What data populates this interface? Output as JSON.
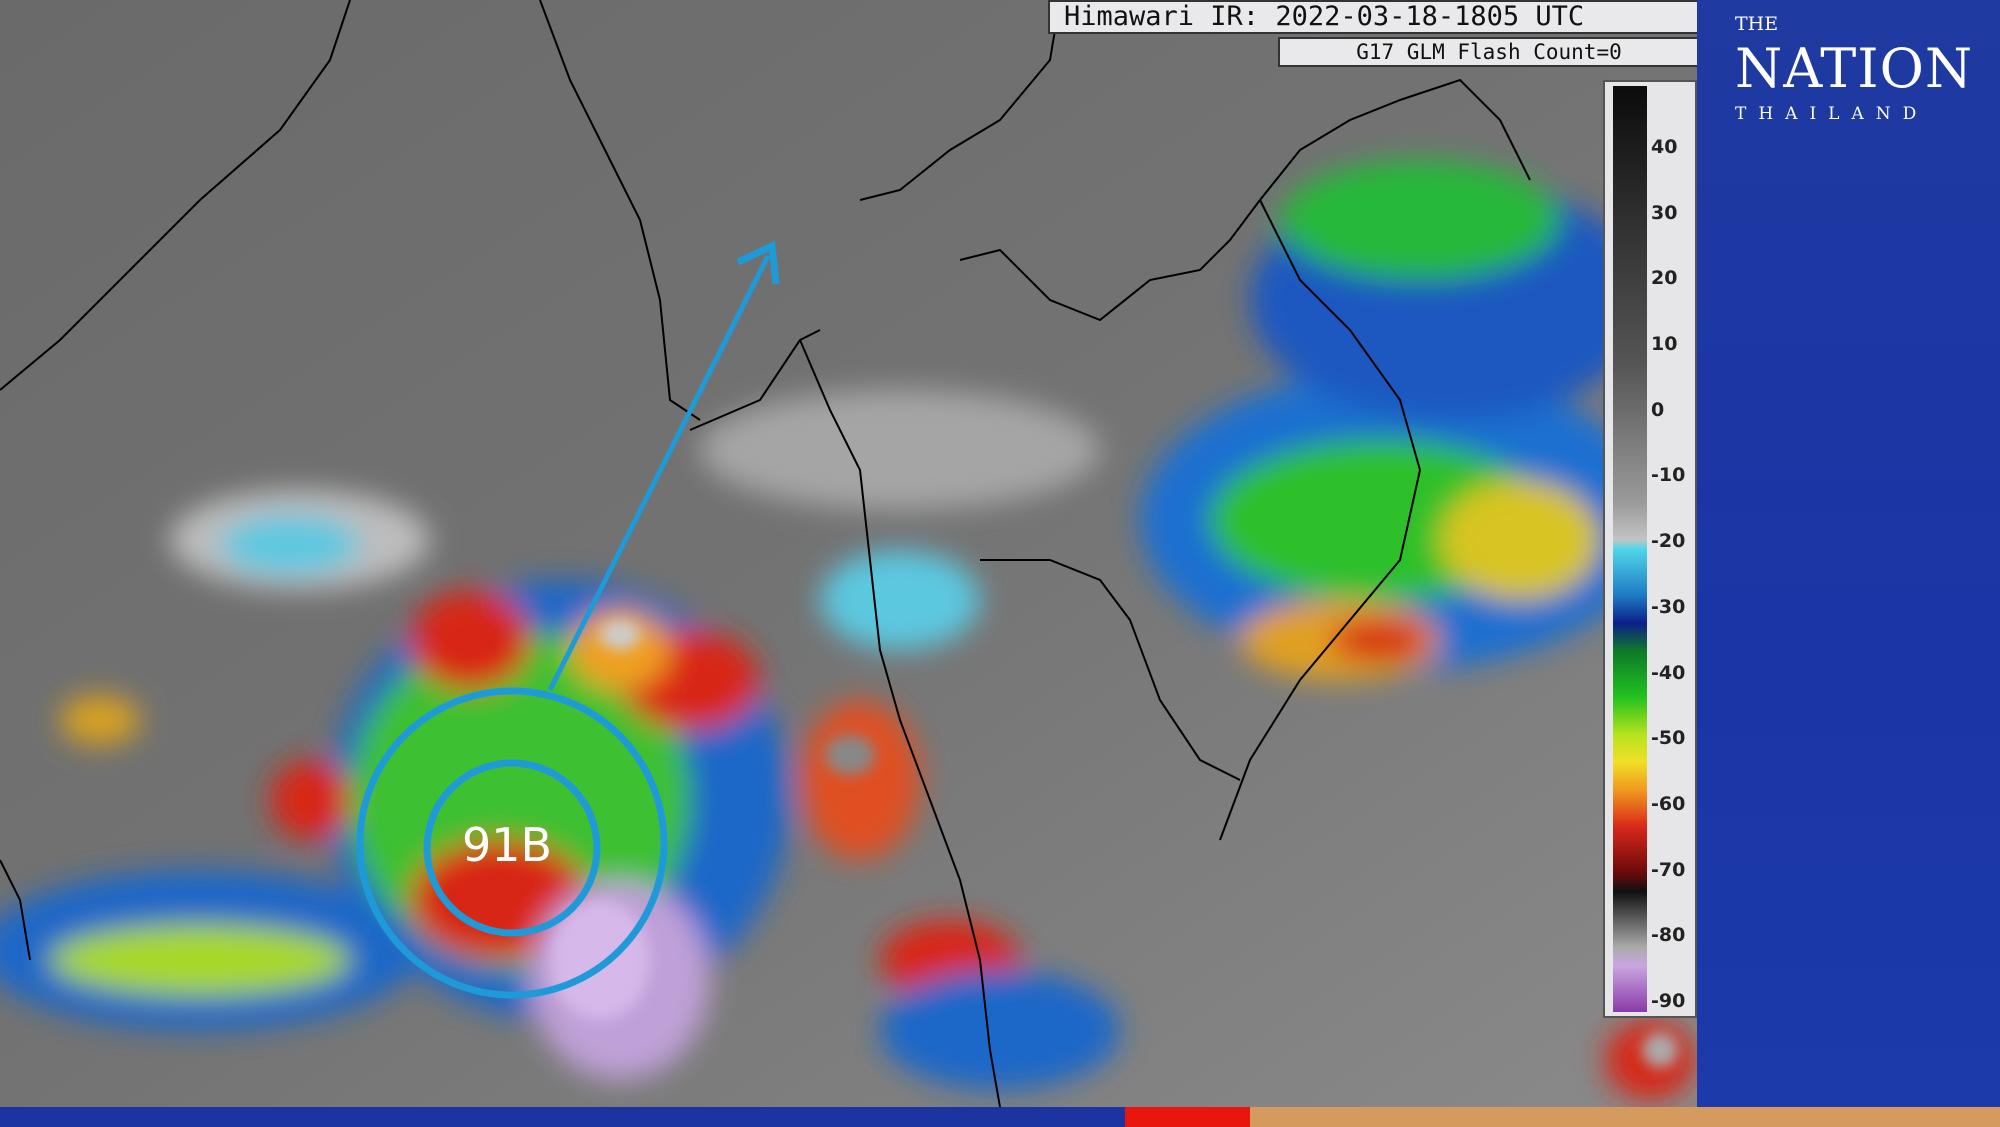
{
  "header": {
    "title": "Himawari IR: 2022-03-18-1805 UTC",
    "subtitle": "G17 GLM Flash Count=0"
  },
  "colorbar": {
    "ticks": [
      "40",
      "30",
      "20",
      "10",
      "0",
      "-10",
      "-20",
      "-30",
      "-40",
      "-50",
      "-60",
      "-70",
      "-80",
      "-90"
    ]
  },
  "storm": {
    "label": "91B",
    "circle_color": "#1e9ad8",
    "arrow_color": "#1e9ad8"
  },
  "logo": {
    "the": "THE",
    "name": "NATION",
    "sub": "THAILAND"
  },
  "colors": {
    "panel": "#1a35a6",
    "bar_blue": "#1c34a0",
    "bar_red": "#e8160c",
    "bar_tan": "#d49a5e"
  }
}
